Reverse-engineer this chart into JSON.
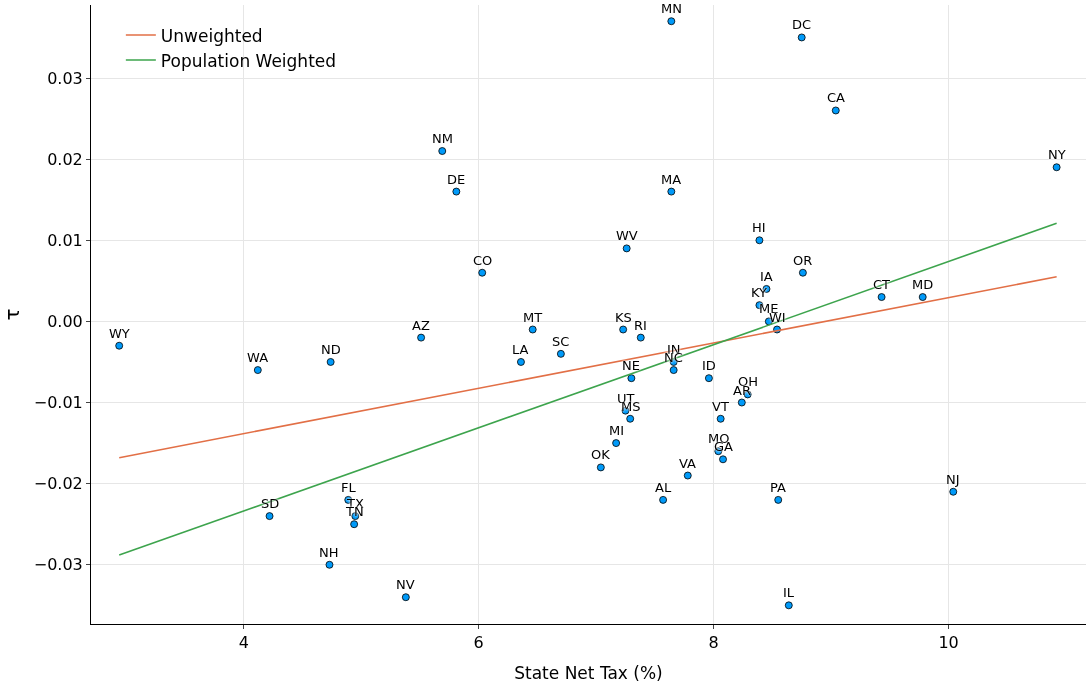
{
  "chart_data": {
    "type": "scatter",
    "xlabel": "State Net Tax (%)",
    "ylabel": "τ",
    "xlim": [
      2.7,
      11.17
    ],
    "xticks": [
      4,
      6,
      8,
      10
    ],
    "ylim": [
      -0.0373,
      0.039
    ],
    "yticks": [
      {
        "value": -0.03,
        "label": "−0.03"
      },
      {
        "value": -0.02,
        "label": "−0.02"
      },
      {
        "value": -0.01,
        "label": "−0.01"
      },
      {
        "value": 0,
        "label": "0.00"
      },
      {
        "value": 0.01,
        "label": "0.01"
      },
      {
        "value": 0.02,
        "label": "0.02"
      },
      {
        "value": 0.03,
        "label": "0.03"
      }
    ],
    "grid": true,
    "legend": "top left",
    "marker": "circle",
    "series": [
      {
        "color": "#009af9",
        "x": [
          7.64,
          8.75,
          9.04,
          10.92,
          5.69,
          5.81,
          7.64,
          8.39,
          7.26,
          6.03,
          8.76,
          8.45,
          9.43,
          9.78,
          8.39,
          8.47,
          8.54,
          6.46,
          7.23,
          7.38,
          5.51,
          2.94,
          6.7,
          6.36,
          4.74,
          7.66,
          7.66,
          4.12,
          7.3,
          7.96,
          8.29,
          8.24,
          7.25,
          7.29,
          8.06,
          7.17,
          8.04,
          8.08,
          7.04,
          7.78,
          7.57,
          8.55,
          10.04,
          4.89,
          4.22,
          4.95,
          4.94,
          4.73,
          5.38,
          8.64
        ],
        "values": [
          0.037,
          0.035,
          0.026,
          0.019,
          0.021,
          0.016,
          0.016,
          0.01,
          0.009,
          0.006,
          0.006,
          0.004,
          0.003,
          0.003,
          0.002,
          0.0,
          -0.001,
          -0.001,
          -0.001,
          -0.002,
          -0.002,
          -0.003,
          -0.004,
          -0.005,
          -0.005,
          -0.005,
          -0.006,
          -0.006,
          -0.007,
          -0.007,
          -0.009,
          -0.01,
          -0.011,
          -0.012,
          -0.012,
          -0.015,
          -0.016,
          -0.017,
          -0.018,
          -0.019,
          -0.022,
          -0.022,
          -0.021,
          -0.022,
          -0.024,
          -0.024,
          -0.025,
          -0.03,
          -0.034,
          -0.035
        ],
        "value_labels": [
          "MN",
          "DC",
          "CA",
          "NY",
          "NM",
          "DE",
          "MA",
          "HI",
          "WV",
          "CO",
          "OR",
          "IA",
          "CT",
          "MD",
          "KY",
          "ME",
          "WI",
          "MT",
          "KS",
          "RI",
          "AZ",
          "WY",
          "SC",
          "LA",
          "ND",
          "IN",
          "NC",
          "WA",
          "NE",
          "ID",
          "OH",
          "AR",
          "UT",
          "MS",
          "VT",
          "MI",
          "MO",
          "GA",
          "OK",
          "VA",
          "AL",
          "PA",
          "NJ",
          "FL",
          "SD",
          "TX",
          "TN",
          "NH",
          "NV",
          "IL"
        ]
      },
      {
        "type": "line",
        "marker": "none",
        "name": "Unweighted",
        "color": "#e26f46",
        "x": [
          2.94,
          10.92
        ],
        "values": [
          -0.0168,
          0.0055
        ]
      },
      {
        "type": "line",
        "marker": "none",
        "name": "Population Weighted",
        "color": "#3da44d",
        "x": [
          2.94,
          10.92
        ],
        "values": [
          -0.0288,
          0.0121
        ]
      }
    ]
  }
}
